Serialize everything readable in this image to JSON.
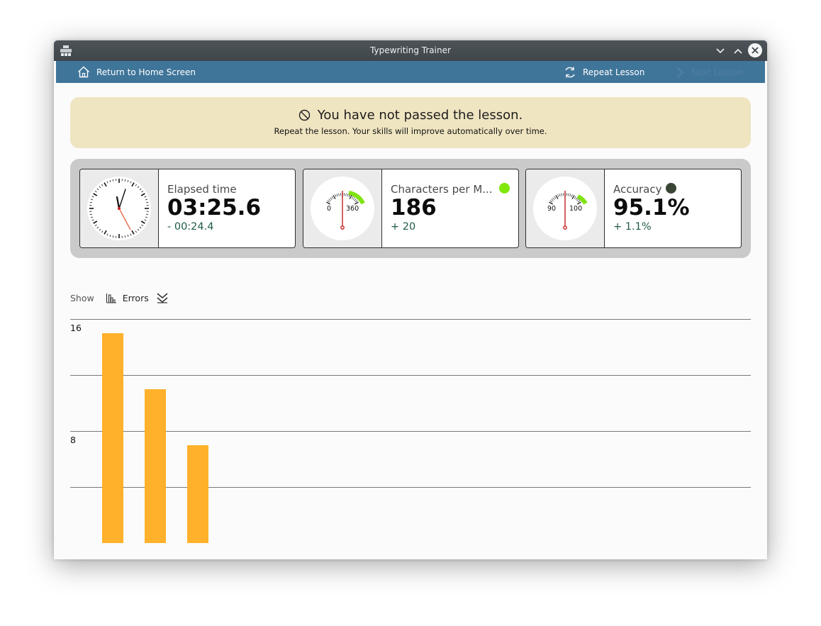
{
  "window": {
    "title": "Typewriting Trainer"
  },
  "toolbar": {
    "home_label": "Return to Home Screen",
    "repeat_label": "Repeat Lesson",
    "next_label": "Next Lesson"
  },
  "banner": {
    "heading": "You have not passed the lesson.",
    "subtext": "Repeat the lesson. Your skills will improve automatically over time."
  },
  "stats": [
    {
      "label": "Elapsed time",
      "value": "03:25.6",
      "diff": "- 00:24.4",
      "gauge": "clock-icon"
    },
    {
      "label": "Characters per M...",
      "value": "186",
      "diff": "+ 20",
      "gauge": "speedometer-icon",
      "scale_min": "0",
      "scale_max": "360",
      "status_color": "#80e80a"
    },
    {
      "label": "Accuracy",
      "value": "95.1%",
      "diff": "+ 1.1%",
      "gauge": "speedometer-icon",
      "scale_min": "90",
      "scale_max": "100",
      "status_color": "#3a4535"
    }
  ],
  "filter": {
    "show_label": "Show",
    "metric": "Errors"
  },
  "chart_data": {
    "type": "bar",
    "categories": [
      "",
      "",
      ""
    ],
    "values": [
      15,
      11,
      7
    ],
    "ylim": [
      0,
      16
    ],
    "yticks": [
      "16",
      "8"
    ],
    "color": "#ffb12b"
  },
  "colors": {
    "titlebar": "#454d52",
    "toolbar": "#40759a",
    "banner": "#efe5c1",
    "panel": "#cacaca",
    "bar": "#ffb12b"
  }
}
